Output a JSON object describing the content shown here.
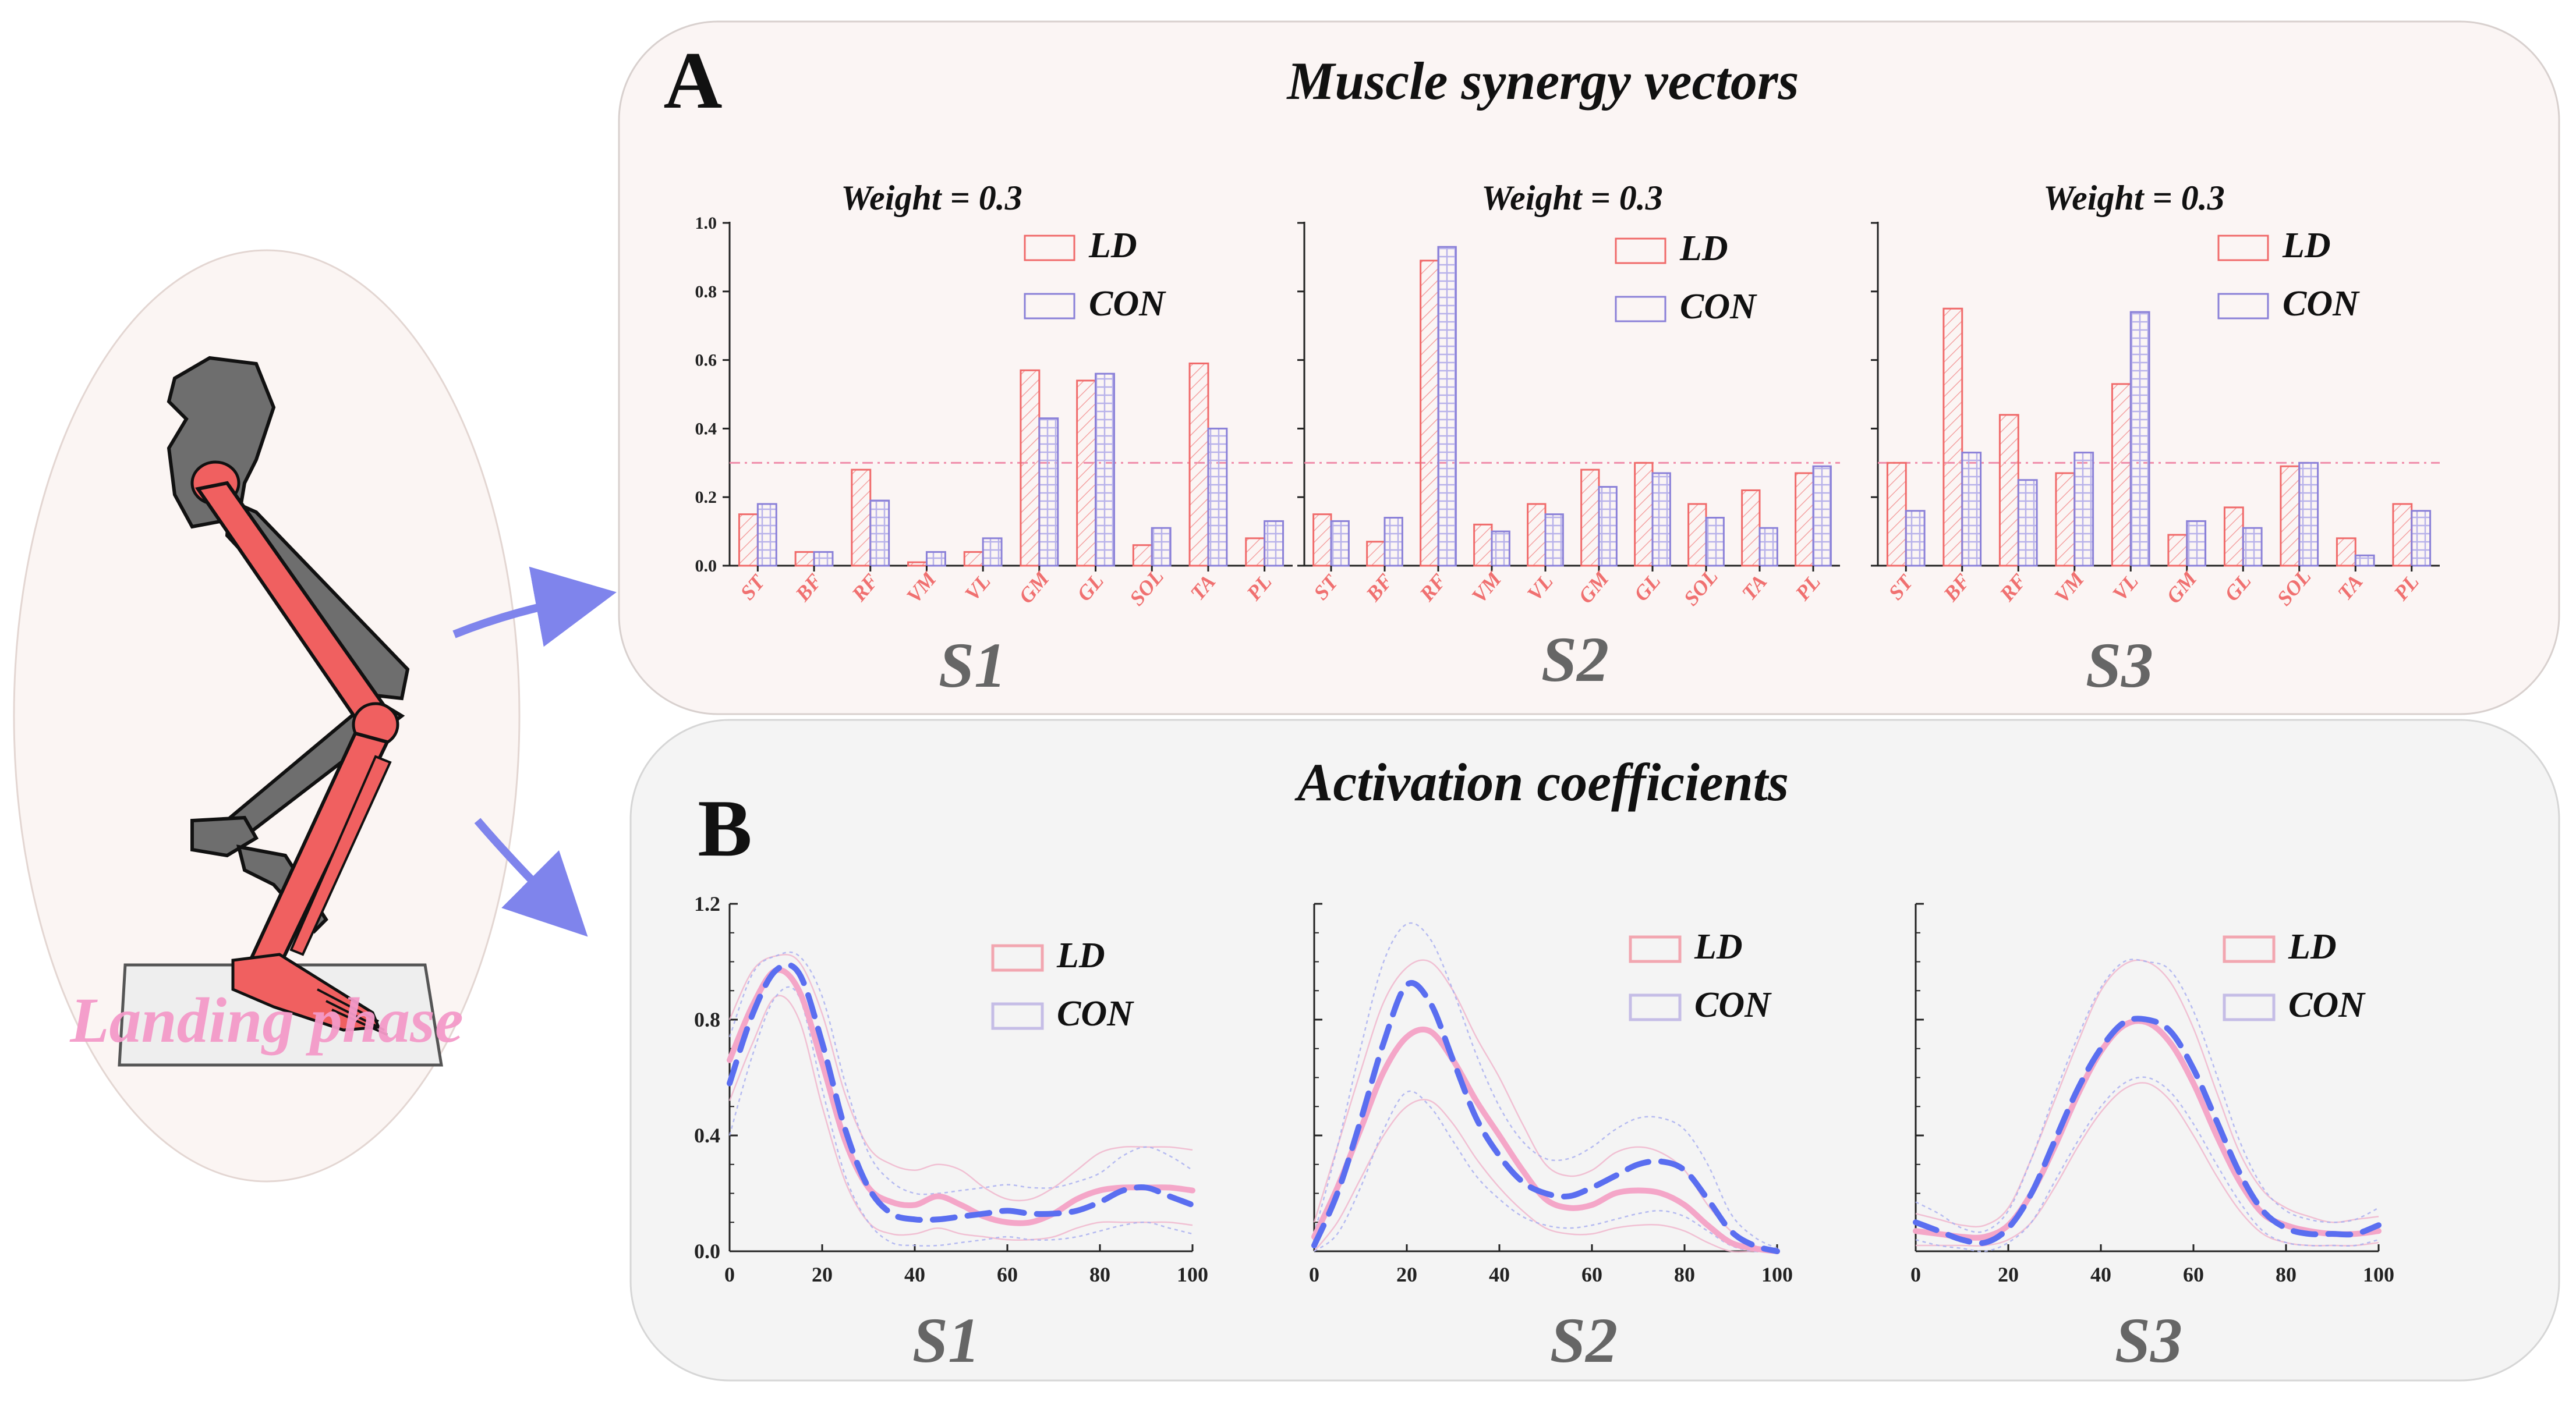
{
  "figure": {
    "panel_a": {
      "letter": "A",
      "title": "Muscle synergy vectors"
    },
    "panel_b": {
      "letter": "B",
      "title": "Activation coefficients"
    },
    "illustration": {
      "label": "Landing phase"
    }
  },
  "colors": {
    "ld": "#f06a6a",
    "con": "#8a80d8",
    "ld_line": "#f4a6c8",
    "con_line": "#5a6ef0",
    "synergy_label": "#666666",
    "muscle_label": "#f07070",
    "panel_a_bg": "#fbf5f4",
    "panel_b_bg": "#f4f4f4",
    "bone_red": "#f06060",
    "bone_gray": "#6e6e6e"
  },
  "chart_data": [
    {
      "type": "bar",
      "panel": "A",
      "synergy": "S1",
      "annotation": "Weight = 0.3",
      "threshold": 0.3,
      "categories": [
        "ST",
        "BF",
        "RF",
        "VM",
        "VL",
        "GM",
        "GL",
        "SOL",
        "TA",
        "PL"
      ],
      "ylim": [
        0,
        1.0
      ],
      "yticks": [
        0.0,
        0.2,
        0.4,
        0.6,
        0.8,
        1.0
      ],
      "ytick_labels": [
        "0.0",
        "0.2",
        "0.4",
        "0.6",
        "0.8",
        "1.0"
      ],
      "show_ytick_labels": true,
      "legend": [
        "LD",
        "CON"
      ],
      "series": [
        {
          "name": "LD",
          "values": [
            0.15,
            0.04,
            0.28,
            0.01,
            0.04,
            0.57,
            0.54,
            0.06,
            0.59,
            0.08
          ]
        },
        {
          "name": "CON",
          "values": [
            0.18,
            0.04,
            0.19,
            0.04,
            0.08,
            0.43,
            0.56,
            0.11,
            0.4,
            0.13
          ]
        }
      ]
    },
    {
      "type": "bar",
      "panel": "A",
      "synergy": "S2",
      "annotation": "Weight = 0.3",
      "threshold": 0.3,
      "categories": [
        "ST",
        "BF",
        "RF",
        "VM",
        "VL",
        "GM",
        "GL",
        "SOL",
        "TA",
        "PL"
      ],
      "ylim": [
        0,
        1.0
      ],
      "yticks": [
        0.0,
        0.2,
        0.4,
        0.6,
        0.8,
        1.0
      ],
      "ytick_labels": [],
      "show_ytick_labels": false,
      "legend": [
        "LD",
        "CON"
      ],
      "series": [
        {
          "name": "LD",
          "values": [
            0.15,
            0.07,
            0.89,
            0.12,
            0.18,
            0.28,
            0.3,
            0.18,
            0.22,
            0.27
          ]
        },
        {
          "name": "CON",
          "values": [
            0.13,
            0.14,
            0.93,
            0.1,
            0.15,
            0.23,
            0.27,
            0.14,
            0.11,
            0.29
          ]
        }
      ]
    },
    {
      "type": "bar",
      "panel": "A",
      "synergy": "S3",
      "annotation": "Weight = 0.3",
      "threshold": 0.3,
      "categories": [
        "ST",
        "BF",
        "RF",
        "VM",
        "VL",
        "GM",
        "GL",
        "SOL",
        "TA",
        "PL"
      ],
      "ylim": [
        0,
        1.0
      ],
      "yticks": [
        0.0,
        0.2,
        0.4,
        0.6,
        0.8,
        1.0
      ],
      "ytick_labels": [],
      "show_ytick_labels": false,
      "legend": [
        "LD",
        "CON"
      ],
      "series": [
        {
          "name": "LD",
          "values": [
            0.3,
            0.75,
            0.44,
            0.27,
            0.53,
            0.09,
            0.17,
            0.29,
            0.08,
            0.18
          ]
        },
        {
          "name": "CON",
          "values": [
            0.16,
            0.33,
            0.25,
            0.33,
            0.74,
            0.13,
            0.11,
            0.3,
            0.03,
            0.16
          ]
        }
      ]
    },
    {
      "type": "line",
      "panel": "B",
      "synergy": "S1",
      "x": [
        0,
        5,
        10,
        15,
        20,
        25,
        30,
        35,
        40,
        45,
        50,
        55,
        60,
        65,
        70,
        75,
        80,
        85,
        90,
        95,
        100
      ],
      "xlim": [
        0,
        100
      ],
      "ylim": [
        0,
        1.2
      ],
      "xticks": [
        0,
        20,
        40,
        60,
        80,
        100
      ],
      "xtick_labels": [
        "0",
        "20",
        "40",
        "60",
        "80",
        "100"
      ],
      "yticks": [
        0.0,
        0.4,
        0.8,
        1.2
      ],
      "ytick_labels": [
        "0.0",
        "0.4",
        "0.8",
        "1.2"
      ],
      "show_ytick_labels": true,
      "legend": [
        "LD",
        "CON"
      ],
      "series": [
        {
          "name": "LD",
          "values": [
            0.66,
            0.85,
            0.97,
            0.9,
            0.65,
            0.38,
            0.22,
            0.17,
            0.16,
            0.19,
            0.16,
            0.12,
            0.1,
            0.1,
            0.13,
            0.18,
            0.21,
            0.22,
            0.22,
            0.22,
            0.21
          ]
        },
        {
          "name": "CON",
          "values": [
            0.58,
            0.82,
            0.97,
            0.96,
            0.72,
            0.42,
            0.22,
            0.13,
            0.11,
            0.11,
            0.12,
            0.13,
            0.14,
            0.13,
            0.13,
            0.14,
            0.17,
            0.21,
            0.22,
            0.19,
            0.16
          ]
        }
      ],
      "bands": [
        {
          "name": "LD",
          "lower": [
            0.52,
            0.72,
            0.88,
            0.8,
            0.5,
            0.24,
            0.1,
            0.06,
            0.06,
            0.08,
            0.06,
            0.05,
            0.04,
            0.04,
            0.05,
            0.08,
            0.1,
            0.1,
            0.1,
            0.1,
            0.09
          ],
          "upper": [
            0.8,
            0.97,
            1.02,
            1.0,
            0.82,
            0.54,
            0.36,
            0.3,
            0.28,
            0.3,
            0.28,
            0.22,
            0.18,
            0.18,
            0.22,
            0.28,
            0.34,
            0.36,
            0.36,
            0.36,
            0.35
          ]
        },
        {
          "name": "CON",
          "lower": [
            0.4,
            0.68,
            0.88,
            0.88,
            0.56,
            0.26,
            0.1,
            0.03,
            0.02,
            0.02,
            0.03,
            0.04,
            0.05,
            0.04,
            0.04,
            0.05,
            0.07,
            0.09,
            0.1,
            0.08,
            0.06
          ],
          "upper": [
            0.74,
            0.96,
            1.02,
            1.02,
            0.88,
            0.58,
            0.34,
            0.24,
            0.2,
            0.2,
            0.21,
            0.22,
            0.23,
            0.22,
            0.22,
            0.24,
            0.27,
            0.33,
            0.36,
            0.33,
            0.28
          ]
        }
      ]
    },
    {
      "type": "line",
      "panel": "B",
      "synergy": "S2",
      "x": [
        0,
        5,
        10,
        15,
        20,
        25,
        30,
        35,
        40,
        45,
        50,
        55,
        60,
        65,
        70,
        75,
        80,
        85,
        90,
        95,
        100
      ],
      "xlim": [
        0,
        100
      ],
      "ylim": [
        0,
        1.2
      ],
      "xticks": [
        0,
        20,
        40,
        60,
        80,
        100
      ],
      "xtick_labels": [
        "0",
        "20",
        "40",
        "60",
        "80",
        "100"
      ],
      "yticks": [
        0.0,
        0.4,
        0.8,
        1.2
      ],
      "ytick_labels": [],
      "show_ytick_labels": false,
      "legend": [
        "LD",
        "CON"
      ],
      "series": [
        {
          "name": "LD",
          "values": [
            0.05,
            0.22,
            0.42,
            0.62,
            0.74,
            0.76,
            0.66,
            0.52,
            0.4,
            0.28,
            0.18,
            0.15,
            0.16,
            0.2,
            0.21,
            0.2,
            0.16,
            0.09,
            0.03,
            0.01,
            0.0
          ]
        },
        {
          "name": "CON",
          "values": [
            0.02,
            0.2,
            0.45,
            0.72,
            0.92,
            0.86,
            0.66,
            0.46,
            0.33,
            0.24,
            0.2,
            0.19,
            0.22,
            0.26,
            0.3,
            0.31,
            0.28,
            0.18,
            0.07,
            0.02,
            0.0
          ]
        }
      ],
      "bands": [
        {
          "name": "LD",
          "lower": [
            0.0,
            0.1,
            0.25,
            0.4,
            0.5,
            0.52,
            0.44,
            0.32,
            0.22,
            0.14,
            0.08,
            0.06,
            0.06,
            0.08,
            0.09,
            0.09,
            0.07,
            0.03,
            0.0,
            0.0,
            0.0
          ],
          "upper": [
            0.1,
            0.36,
            0.62,
            0.86,
            0.98,
            1.0,
            0.9,
            0.74,
            0.6,
            0.44,
            0.3,
            0.26,
            0.28,
            0.34,
            0.36,
            0.34,
            0.28,
            0.16,
            0.07,
            0.02,
            0.0
          ]
        },
        {
          "name": "CON",
          "lower": [
            0.0,
            0.06,
            0.22,
            0.42,
            0.55,
            0.5,
            0.38,
            0.26,
            0.18,
            0.12,
            0.09,
            0.08,
            0.09,
            0.11,
            0.13,
            0.14,
            0.12,
            0.07,
            0.02,
            0.0,
            0.0
          ],
          "upper": [
            0.06,
            0.36,
            0.7,
            1.0,
            1.13,
            1.08,
            0.9,
            0.68,
            0.5,
            0.38,
            0.32,
            0.32,
            0.36,
            0.42,
            0.46,
            0.46,
            0.42,
            0.3,
            0.13,
            0.05,
            0.01
          ]
        }
      ]
    },
    {
      "type": "line",
      "panel": "B",
      "synergy": "S3",
      "x": [
        0,
        5,
        10,
        15,
        20,
        25,
        30,
        35,
        40,
        45,
        50,
        55,
        60,
        65,
        70,
        75,
        80,
        85,
        90,
        95,
        100
      ],
      "xlim": [
        0,
        100
      ],
      "ylim": [
        0,
        1.2
      ],
      "xticks": [
        0,
        20,
        40,
        60,
        80,
        100
      ],
      "xtick_labels": [
        "0",
        "20",
        "40",
        "60",
        "80",
        "100"
      ],
      "yticks": [
        0.0,
        0.4,
        0.8,
        1.2
      ],
      "ytick_labels": [],
      "show_ytick_labels": false,
      "legend": [
        "LD",
        "CON"
      ],
      "series": [
        {
          "name": "LD",
          "values": [
            0.07,
            0.06,
            0.05,
            0.05,
            0.09,
            0.2,
            0.36,
            0.54,
            0.69,
            0.78,
            0.79,
            0.72,
            0.58,
            0.4,
            0.24,
            0.13,
            0.09,
            0.07,
            0.06,
            0.06,
            0.07
          ]
        },
        {
          "name": "CON",
          "values": [
            0.1,
            0.07,
            0.04,
            0.03,
            0.08,
            0.2,
            0.38,
            0.56,
            0.7,
            0.79,
            0.8,
            0.76,
            0.63,
            0.45,
            0.27,
            0.14,
            0.08,
            0.06,
            0.06,
            0.06,
            0.09
          ]
        }
      ],
      "bands": [
        {
          "name": "LD",
          "lower": [
            0.02,
            0.02,
            0.02,
            0.02,
            0.04,
            0.1,
            0.22,
            0.36,
            0.48,
            0.56,
            0.58,
            0.52,
            0.4,
            0.26,
            0.14,
            0.06,
            0.03,
            0.02,
            0.02,
            0.02,
            0.03
          ],
          "upper": [
            0.13,
            0.11,
            0.09,
            0.09,
            0.15,
            0.32,
            0.52,
            0.72,
            0.9,
            0.99,
            1.0,
            0.93,
            0.77,
            0.55,
            0.34,
            0.21,
            0.15,
            0.12,
            0.1,
            0.11,
            0.12
          ]
        },
        {
          "name": "CON",
          "lower": [
            0.04,
            0.02,
            0.01,
            0.0,
            0.03,
            0.1,
            0.24,
            0.38,
            0.5,
            0.58,
            0.6,
            0.55,
            0.44,
            0.3,
            0.17,
            0.07,
            0.03,
            0.02,
            0.02,
            0.02,
            0.04
          ],
          "upper": [
            0.17,
            0.13,
            0.08,
            0.07,
            0.14,
            0.32,
            0.54,
            0.74,
            0.91,
            1.0,
            1.0,
            0.97,
            0.83,
            0.61,
            0.38,
            0.22,
            0.14,
            0.11,
            0.1,
            0.11,
            0.15
          ]
        }
      ]
    }
  ]
}
